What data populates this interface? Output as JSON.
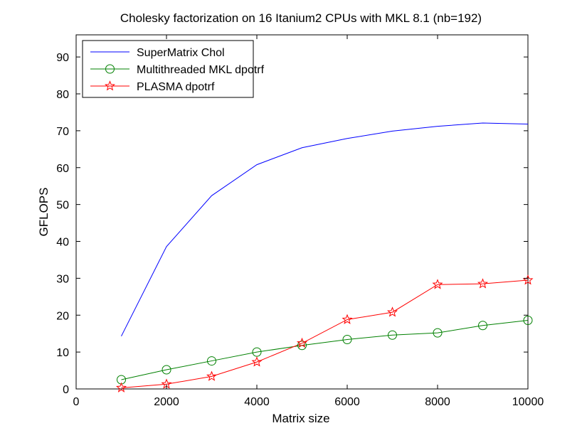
{
  "chart_data": {
    "type": "line",
    "title": "Cholesky factorization on 16 Itanium2 CPUs with MKL 8.1 (nb=192)",
    "xlabel": "Matrix size",
    "ylabel": "GFLOPS",
    "xlim": [
      0,
      10000
    ],
    "ylim": [
      0,
      96
    ],
    "xticks": [
      0,
      2000,
      4000,
      6000,
      8000,
      10000
    ],
    "yticks": [
      0,
      10,
      20,
      30,
      40,
      50,
      60,
      70,
      80,
      90
    ],
    "xtick_labels": [
      "0",
      "2000",
      "4000",
      "6000",
      "8000",
      "10000"
    ],
    "ytick_labels": [
      "0",
      "10",
      "20",
      "30",
      "40",
      "50",
      "60",
      "70",
      "80",
      "90"
    ],
    "grid": false,
    "legend_position": "top-left",
    "x": [
      1000,
      2000,
      3000,
      4000,
      5000,
      6000,
      7000,
      8000,
      9000,
      10000
    ],
    "series": [
      {
        "name": "SuperMatrix Chol",
        "color": "#0000ff",
        "marker": "none",
        "values": [
          14.3,
          38.6,
          52.4,
          60.8,
          65.4,
          67.9,
          69.9,
          71.2,
          72.1,
          71.8
        ]
      },
      {
        "name": "Multithreaded MKL dpotrf",
        "color": "#008000",
        "marker": "circle",
        "values": [
          2.5,
          5.2,
          7.6,
          10.0,
          11.8,
          13.4,
          14.6,
          15.2,
          17.2,
          18.6
        ]
      },
      {
        "name": "PLASMA dpotrf",
        "color": "#ff0000",
        "marker": "star",
        "values": [
          0.3,
          1.3,
          3.4,
          7.3,
          12.4,
          18.8,
          20.8,
          28.3,
          28.5,
          29.5
        ]
      }
    ]
  }
}
